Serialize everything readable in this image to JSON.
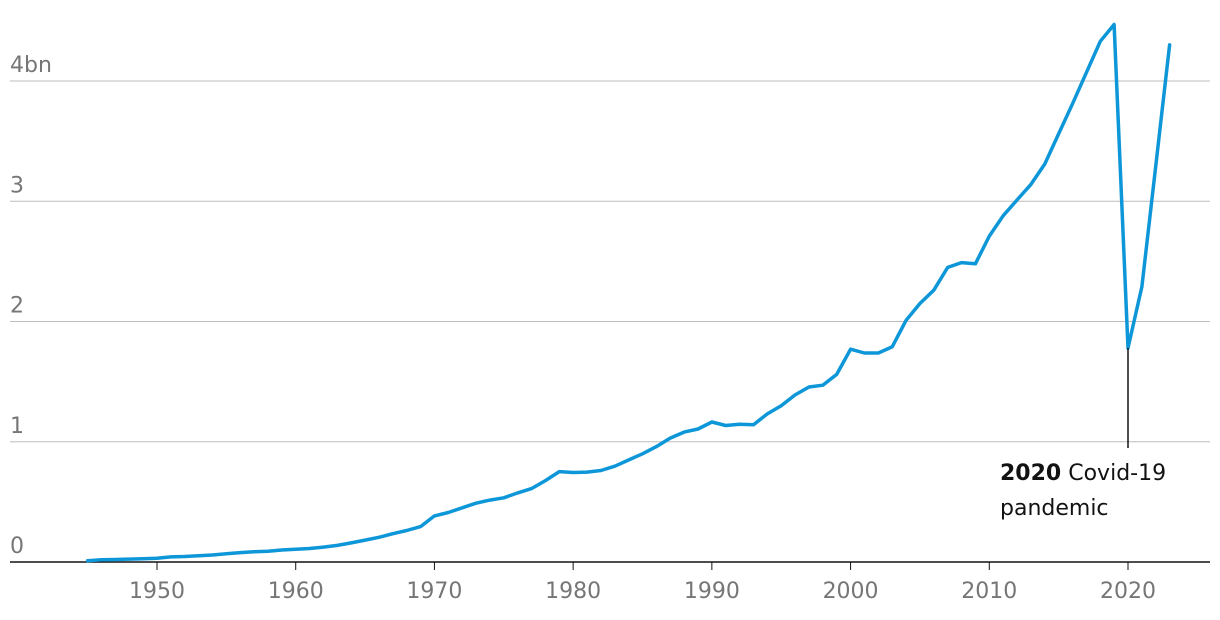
{
  "chart_data": {
    "type": "line",
    "title": "",
    "xlabel": "",
    "ylabel": "",
    "xlim": [
      1940,
      2026
    ],
    "ylim": [
      0,
      4.6
    ],
    "grid": true,
    "colors": {
      "series": "#0e97d8",
      "gridline": "#bdbdbd",
      "axis": "#121212",
      "tick_text": "#767676",
      "annotation_text": "#121212"
    },
    "y_ticks": [
      {
        "value": 0,
        "label": "0"
      },
      {
        "value": 1,
        "label": "1"
      },
      {
        "value": 2,
        "label": "2"
      },
      {
        "value": 3,
        "label": "3"
      },
      {
        "value": 4,
        "label": "4bn"
      }
    ],
    "x_ticks": [
      {
        "value": 1950,
        "label": "1950"
      },
      {
        "value": 1960,
        "label": "1960"
      },
      {
        "value": 1970,
        "label": "1970"
      },
      {
        "value": 1980,
        "label": "1980"
      },
      {
        "value": 1990,
        "label": "1990"
      },
      {
        "value": 2000,
        "label": "2000"
      },
      {
        "value": 2010,
        "label": "2010"
      },
      {
        "value": 2020,
        "label": "2020"
      }
    ],
    "series": [
      {
        "x": [
          1945,
          1946,
          1947,
          1948,
          1949,
          1950,
          1951,
          1952,
          1953,
          1954,
          1955,
          1956,
          1957,
          1958,
          1959,
          1960,
          1961,
          1962,
          1963,
          1964,
          1965,
          1966,
          1967,
          1968,
          1969,
          1970,
          1971,
          1972,
          1973,
          1974,
          1975,
          1976,
          1977,
          1978,
          1979,
          1980,
          1981,
          1982,
          1983,
          1984,
          1985,
          1986,
          1987,
          1988,
          1989,
          1990,
          1991,
          1992,
          1993,
          1994,
          1995,
          1996,
          1997,
          1998,
          1999,
          2000,
          2001,
          2002,
          2003,
          2004,
          2005,
          2006,
          2007,
          2008,
          2009,
          2010,
          2011,
          2012,
          2013,
          2014,
          2015,
          2016,
          2017,
          2018,
          2019,
          2020,
          2021,
          2022,
          2023
        ],
        "values": [
          0.01,
          0.018,
          0.021,
          0.024,
          0.027,
          0.031,
          0.042,
          0.046,
          0.052,
          0.058,
          0.068,
          0.078,
          0.086,
          0.089,
          0.1,
          0.106,
          0.112,
          0.124,
          0.138,
          0.159,
          0.182,
          0.205,
          0.235,
          0.262,
          0.294,
          0.383,
          0.412,
          0.451,
          0.489,
          0.515,
          0.534,
          0.575,
          0.61,
          0.677,
          0.752,
          0.744,
          0.748,
          0.761,
          0.797,
          0.848,
          0.9,
          0.96,
          1.03,
          1.08,
          1.106,
          1.164,
          1.135,
          1.145,
          1.142,
          1.232,
          1.3,
          1.39,
          1.455,
          1.47,
          1.56,
          1.77,
          1.738,
          1.738,
          1.79,
          2.01,
          2.15,
          2.26,
          2.45,
          2.49,
          2.48,
          2.71,
          2.88,
          3.01,
          3.14,
          3.31,
          3.56,
          3.81,
          4.07,
          4.33,
          4.47,
          1.78,
          2.29,
          3.29,
          4.3
        ]
      }
    ],
    "annotations": [
      {
        "x": 2020,
        "y": 1.78,
        "year_label": "2020",
        "line1": "Covid-19",
        "line2": "pandemic"
      }
    ]
  }
}
